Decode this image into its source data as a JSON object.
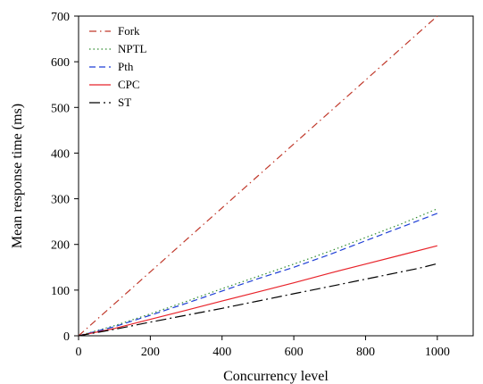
{
  "chart_data": {
    "type": "line",
    "xlabel": "Concurrency level",
    "ylabel": "Mean response time (ms)",
    "xlim": [
      0,
      1100
    ],
    "ylim": [
      0,
      700
    ],
    "xticks": [
      0,
      200,
      400,
      600,
      800,
      1000
    ],
    "yticks": [
      0,
      100,
      200,
      300,
      400,
      500,
      600,
      700
    ],
    "grid": false,
    "legend_position": "top-left",
    "series": [
      {
        "name": "Fork",
        "color": "#c0392b",
        "dash": "dash-dot",
        "x": [
          0,
          100,
          200,
          300,
          400,
          500,
          600,
          700,
          800,
          900,
          1000
        ],
        "y": [
          0,
          70,
          140,
          210,
          280,
          350,
          420,
          490,
          560,
          630,
          700
        ]
      },
      {
        "name": "NPTL",
        "color": "#2e8b2e",
        "dash": "dotted",
        "x": [
          0,
          100,
          200,
          300,
          400,
          500,
          600,
          700,
          800,
          900,
          1000
        ],
        "y": [
          0,
          22,
          48,
          75,
          103,
          130,
          157,
          185,
          215,
          245,
          278
        ]
      },
      {
        "name": "Pth",
        "color": "#1f3fd6",
        "dash": "dashed",
        "x": [
          0,
          100,
          200,
          300,
          400,
          500,
          600,
          700,
          800,
          900,
          1000
        ],
        "y": [
          0,
          20,
          45,
          71,
          98,
          125,
          150,
          178,
          208,
          238,
          268
        ]
      },
      {
        "name": "CPC",
        "color": "#e8232a",
        "dash": "solid",
        "x": [
          0,
          100,
          200,
          300,
          400,
          500,
          600,
          700,
          800,
          900,
          1000
        ],
        "y": [
          0,
          16,
          36,
          56,
          76,
          96,
          116,
          137,
          157,
          177,
          197
        ]
      },
      {
        "name": "ST",
        "color": "#000000",
        "dash": "long-dash-dot",
        "x": [
          0,
          100,
          200,
          300,
          400,
          500,
          600,
          700,
          800,
          900,
          950,
          1000
        ],
        "y": [
          0,
          14,
          30,
          45,
          60,
          76,
          92,
          108,
          124,
          140,
          148,
          158
        ]
      }
    ]
  }
}
